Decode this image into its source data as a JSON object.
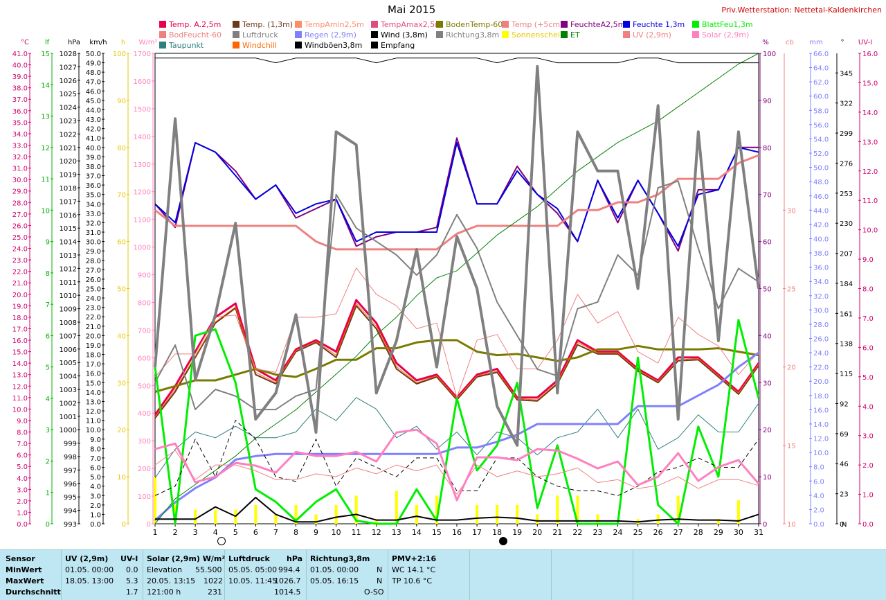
{
  "header": {
    "title": "Mai 2015",
    "station": "Priv.Wetterstation: Nettetal-Kaldenkirchen"
  },
  "legend": [
    {
      "label": "Temp. A.2,5m",
      "color": "#e6004d"
    },
    {
      "label": "Temp. (1,3m)",
      "color": "#6b3a1a"
    },
    {
      "label": "TempAmin2,5m",
      "color": "#ff8c69"
    },
    {
      "label": "TempAmax2,5m",
      "color": "#e04b7a"
    },
    {
      "label": "BodenTemp-60",
      "color": "#7a7a00"
    },
    {
      "label": "Temp (+5cm)",
      "color": "#f08080"
    },
    {
      "label": "FeuchteA2,5m",
      "color": "#800080"
    },
    {
      "label": "Feuchte 1,3m",
      "color": "#0000e0"
    },
    {
      "label": "BlattFeu1,3m",
      "color": "#00ee00"
    },
    {
      "label": "BodFeucht-60",
      "color": "#f08080"
    },
    {
      "label": "Luftdruck",
      "color": "#808080"
    },
    {
      "label": "Regen (2,9m)",
      "color": "#8080ff"
    },
    {
      "label": "Wind (3,8m)",
      "color": "#000000"
    },
    {
      "label": "Richtung3,8m",
      "color": "#808080"
    },
    {
      "label": "Sonnenschein",
      "color": "#ffff00"
    },
    {
      "label": "ET",
      "color": "#008000"
    },
    {
      "label": "UV (2,9m)",
      "color": "#f08080"
    },
    {
      "label": "Solar (2,9m)",
      "color": "#ff80c0"
    },
    {
      "label": "Taupunkt",
      "color": "#2f7f7f"
    },
    {
      "label": "Windchill",
      "color": "#ff6600"
    },
    {
      "label": "Windböen3,8m",
      "color": "#000000"
    },
    {
      "label": "Empfang",
      "color": "#000000"
    }
  ],
  "axes_labels": {
    "temp_unit": "°C",
    "lf_unit": "lf",
    "hpa_unit": "hPa",
    "kmh_unit": "km/h",
    "h_unit": "h",
    "wm2_unit": "W/m²",
    "pct_unit": "%",
    "cb_unit": "cb",
    "mm_unit": "mm",
    "deg_unit": "°",
    "uvi_unit": "UV-I",
    "north": "N"
  },
  "chart_data": {
    "type": "line",
    "title": "Mai 2015",
    "x": [
      1,
      2,
      3,
      4,
      5,
      6,
      7,
      8,
      9,
      10,
      11,
      12,
      13,
      14,
      15,
      16,
      17,
      18,
      19,
      20,
      21,
      22,
      23,
      24,
      25,
      26,
      27,
      28,
      29,
      30,
      31
    ],
    "axes": {
      "temp_c": {
        "ylim": [
          0,
          41
        ]
      },
      "lf": {
        "ylim": [
          0,
          15
        ]
      },
      "hpa": {
        "ylim": [
          993,
          1028
        ]
      },
      "kmh": {
        "ylim": [
          0,
          50
        ]
      },
      "h": {
        "ylim": [
          0,
          100
        ]
      },
      "wm2": {
        "ylim": [
          0,
          1700
        ]
      },
      "pct": {
        "ylim": [
          0,
          100
        ]
      },
      "cb": {
        "ylim": [
          10,
          40
        ]
      },
      "mm": {
        "ylim": [
          0,
          66
        ]
      },
      "deg": {
        "ylim": [
          0,
          360
        ]
      },
      "uvi": {
        "ylim": [
          0,
          16
        ]
      }
    },
    "series": [
      {
        "name": "Temp. A.2,5m",
        "axis": "temp_c",
        "color": "#e6004d",
        "width": 3,
        "values": [
          9.5,
          12.0,
          15.0,
          18.0,
          19.2,
          13.5,
          12.5,
          15.2,
          16.0,
          15.0,
          19.5,
          17.5,
          14.0,
          12.5,
          13.0,
          11.0,
          13.0,
          13.5,
          11.0,
          11.0,
          12.5,
          16.0,
          15.0,
          15.0,
          13.5,
          12.5,
          14.5,
          14.5,
          13.0,
          11.5,
          14.0
        ]
      },
      {
        "name": "Temp. (1,3m)",
        "axis": "temp_c",
        "color": "#6b3a1a",
        "width": 2,
        "values": [
          9.2,
          11.5,
          14.5,
          17.5,
          18.8,
          13.0,
          12.2,
          15.0,
          15.8,
          14.5,
          19.0,
          17.0,
          13.5,
          12.2,
          12.8,
          10.8,
          12.8,
          13.2,
          10.8,
          10.7,
          12.2,
          15.6,
          14.8,
          14.8,
          13.3,
          12.3,
          14.2,
          14.3,
          12.8,
          11.3,
          13.8
        ]
      },
      {
        "name": "BodenTemp-60",
        "axis": "temp_c",
        "color": "#7a7a00",
        "width": 3,
        "values": [
          11.5,
          12.0,
          12.5,
          12.5,
          13.0,
          13.5,
          13.0,
          12.8,
          13.5,
          14.3,
          14.3,
          15.3,
          15.3,
          15.8,
          16.0,
          16.0,
          15.0,
          14.7,
          14.8,
          14.5,
          14.2,
          14.5,
          15.2,
          15.2,
          15.5,
          15.2,
          15.2,
          15.2,
          15.3,
          15.0,
          14.7
        ]
      },
      {
        "name": "Temp (+5cm)",
        "axis": "temp_c",
        "color": "#f08080",
        "width": 1,
        "values": [
          12.8,
          14.8,
          14.8,
          18.0,
          18.2,
          13.5,
          13.2,
          18.0,
          18.0,
          18.3,
          22.3,
          20.0,
          19.0,
          17.0,
          17.5,
          11.0,
          16.0,
          16.5,
          13.5,
          13.5,
          16.0,
          20.0,
          17.5,
          18.5,
          15.0,
          14.0,
          18.0,
          16.5,
          15.5,
          13.0,
          15.0
        ]
      },
      {
        "name": "Taupunkt",
        "axis": "temp_c",
        "color": "#2f7f7f",
        "width": 1,
        "values": [
          4.0,
          6.5,
          8.0,
          7.5,
          8.5,
          7.5,
          7.5,
          8.0,
          10.0,
          9.0,
          11.0,
          10.0,
          7.5,
          8.5,
          6.5,
          8.0,
          6.0,
          8.0,
          7.5,
          6.0,
          7.5,
          8.0,
          10.0,
          7.5,
          10.0,
          6.5,
          7.5,
          9.5,
          8.0,
          8.0,
          10.5
        ]
      },
      {
        "name": "Windchill",
        "axis": "temp_c",
        "color": "#ff6600",
        "width": 1,
        "values": [
          9.3,
          11.7,
          14.6,
          17.6,
          18.9,
          13.2,
          12.3,
          15.1,
          15.9,
          14.7,
          19.2,
          17.2,
          13.7,
          12.3,
          12.9,
          10.9,
          12.9,
          13.3,
          10.9,
          10.8,
          12.3,
          15.8,
          14.9,
          14.9,
          13.4,
          12.4,
          14.3,
          14.4,
          12.9,
          11.4,
          13.9
        ]
      },
      {
        "name": "FeuchteA2,5m",
        "axis": "pct",
        "color": "#800080",
        "width": 2,
        "values": [
          68,
          63,
          81,
          79,
          75,
          69,
          72,
          65,
          67,
          69,
          59,
          61,
          62,
          62,
          63,
          82,
          68,
          68,
          76,
          70,
          66,
          60,
          73,
          64,
          73,
          66,
          58,
          71,
          71,
          80,
          80
        ]
      },
      {
        "name": "Feuchte 1,3m",
        "axis": "pct",
        "color": "#0000e0",
        "width": 2,
        "values": [
          68,
          64,
          81,
          79,
          74,
          69,
          72,
          66,
          68,
          69,
          60,
          62,
          62,
          62,
          62,
          81,
          68,
          68,
          75,
          70,
          67,
          60,
          73,
          65,
          73,
          66,
          59,
          70,
          71,
          80,
          79
        ]
      },
      {
        "name": "BodFeucht-60",
        "axis": "cb",
        "color": "#f08080",
        "width": 3,
        "values": [
          30,
          29,
          29,
          29,
          29,
          29,
          29,
          29,
          28,
          27.5,
          27.5,
          27.5,
          27.5,
          27.5,
          27.5,
          28.5,
          29,
          29,
          29,
          29,
          29,
          30,
          30,
          30.5,
          30.5,
          31,
          32,
          32,
          32,
          33,
          33.5
        ]
      },
      {
        "name": "Luftdruck",
        "axis": "hpa",
        "color": "#808080",
        "width": 2,
        "values": [
          1003.5,
          1006.3,
          1001.5,
          1003.0,
          1002.5,
          1001.5,
          1001.5,
          1002.5,
          1003.0,
          1017.5,
          1015.0,
          1014.0,
          1013.0,
          1011.5,
          1013.0,
          1016.0,
          1013.5,
          1009.5,
          1007.0,
          1004.5,
          1004.0,
          1009.0,
          1009.5,
          1013.0,
          1011.5,
          1018.0,
          1018.5,
          1013.5,
          1009.0,
          1012.0,
          1011.0
        ]
      },
      {
        "name": "Regen (2,9m)",
        "axis": "mm",
        "color": "#8080ff",
        "width": 3,
        "values": [
          0.5,
          3.0,
          5.0,
          6.5,
          9.0,
          9.5,
          9.8,
          9.8,
          9.8,
          9.8,
          9.8,
          9.8,
          9.8,
          9.8,
          9.8,
          10.7,
          10.7,
          11.5,
          12.5,
          14.0,
          14.0,
          14.0,
          14.0,
          14.0,
          16.5,
          16.5,
          16.5,
          18.0,
          19.5,
          22.0,
          24.0
        ]
      },
      {
        "name": "ET",
        "axis": "mm",
        "color": "#008000",
        "width": 1,
        "values": [
          0,
          3.5,
          5.5,
          7.5,
          9.5,
          12.0,
          14.0,
          16.0,
          18.5,
          21.0,
          23.5,
          26.5,
          29.0,
          32.0,
          34.5,
          35.5,
          38.0,
          40.5,
          42.5,
          44.5,
          47.0,
          49.5,
          51.5,
          53.5,
          55.0,
          56.5,
          58.5,
          60.5,
          62.5,
          64.5,
          66.0
        ]
      },
      {
        "name": "BlattFeu1,3m",
        "axis": "lf",
        "color": "#00ee00",
        "width": 3,
        "values": [
          5.0,
          0.0,
          6.0,
          6.2,
          4.5,
          1.1,
          0.7,
          0.1,
          0.7,
          1.1,
          0.1,
          0.0,
          0.0,
          1.1,
          0.1,
          4.0,
          1.7,
          2.5,
          4.5,
          0.5,
          2.5,
          0.0,
          0.0,
          0.0,
          5.3,
          0.6,
          0.0,
          3.1,
          1.5,
          6.5,
          4.0
        ]
      },
      {
        "name": "Wind (3,8m)",
        "axis": "kmh",
        "color": "#000000",
        "width": 2,
        "values": [
          0.5,
          0.5,
          0.5,
          1.8,
          0.8,
          2.8,
          1.0,
          0.2,
          0.2,
          0.7,
          1.0,
          0.4,
          0.4,
          0.8,
          0.4,
          0.4,
          0.6,
          0.7,
          0.6,
          0.3,
          0.3,
          0.3,
          0.3,
          0.3,
          0.2,
          0.4,
          0.5,
          0.4,
          0.4,
          0.3,
          1.0
        ]
      },
      {
        "name": "Windböen3,8m",
        "axis": "kmh",
        "color": "#000000",
        "width": 1,
        "dash": true,
        "values": [
          3.0,
          4.0,
          9.0,
          5.0,
          11.0,
          9.0,
          5.0,
          4.5,
          9.0,
          4.0,
          7.0,
          6.0,
          5.0,
          7.0,
          7.0,
          3.5,
          3.5,
          7.0,
          7.0,
          5.0,
          4.0,
          3.5,
          3.5,
          3.0,
          4.0,
          5.5,
          6.0,
          7.0,
          6.0,
          6.0,
          9.0
        ]
      },
      {
        "name": "Richtung3,8m",
        "axis": "deg",
        "color": "#808080",
        "width": 4,
        "values": [
          120,
          310,
          110,
          160,
          230,
          80,
          100,
          160,
          70,
          300,
          290,
          100,
          140,
          210,
          120,
          220,
          180,
          90,
          60,
          350,
          100,
          300,
          270,
          270,
          180,
          320,
          80,
          300,
          140,
          300,
          180
        ]
      },
      {
        "name": "UV (2,9m)",
        "axis": "uvi",
        "color": "#f08080",
        "width": 1,
        "values": [
          2.0,
          2.5,
          1.5,
          2.0,
          2.0,
          1.8,
          1.5,
          1.5,
          1.7,
          1.6,
          1.9,
          1.7,
          2.0,
          1.8,
          2.0,
          1.0,
          2.0,
          1.6,
          1.8,
          1.6,
          1.7,
          1.9,
          1.4,
          1.5,
          1.2,
          1.3,
          1.6,
          1.2,
          1.5,
          1.5,
          1.3
        ]
      },
      {
        "name": "Solar (2,9m)",
        "axis": "wm2",
        "color": "#ff80c0",
        "width": 3,
        "values": [
          270,
          290,
          150,
          170,
          220,
          210,
          185,
          260,
          245,
          245,
          260,
          225,
          330,
          340,
          290,
          85,
          240,
          240,
          230,
          270,
          265,
          235,
          200,
          225,
          140,
          170,
          255,
          155,
          205,
          230,
          145
        ]
      },
      {
        "name": "Empfang",
        "axis": "pct",
        "color": "#000000",
        "width": 1,
        "values": [
          99,
          99,
          99,
          99,
          99,
          99,
          98,
          99,
          99,
          99,
          99,
          98,
          99,
          99,
          99,
          99,
          99,
          98,
          99,
          99,
          98,
          98,
          98,
          98,
          99,
          99,
          98,
          98,
          98,
          98,
          98
        ]
      }
    ],
    "sunshine_h": [
      10,
      4,
      3,
      3,
      3,
      4,
      2,
      4,
      2,
      4,
      6,
      1,
      7,
      4,
      6,
      0,
      4,
      4,
      4,
      2,
      6,
      6,
      2,
      0,
      1,
      2,
      6,
      0,
      1,
      5,
      0
    ],
    "moon_phases": [
      {
        "day": 4,
        "phase": "full"
      },
      {
        "day": 18,
        "phase": "new"
      }
    ]
  },
  "footer": {
    "sensor": {
      "title": "Sensor",
      "rows": [
        "MinWert",
        "MaxWert",
        "Durchschnitt"
      ]
    },
    "uv": {
      "title": "UV (2,9m)",
      "unit": "UV-I",
      "rows": [
        [
          "01.05.  00:00",
          "0.0"
        ],
        [
          "18.05.  13:00",
          "5.3"
        ],
        [
          "",
          "1.7"
        ]
      ]
    },
    "solar": {
      "title": "Solar (2,9m) W/m²",
      "rows": [
        [
          "Elevation",
          "55.500"
        ],
        [
          "20.05.  13:15",
          "1022"
        ],
        [
          "121:00 h",
          "231"
        ]
      ]
    },
    "luftdruck": {
      "title": "Luftdruck",
      "unit": "hPa",
      "rows": [
        [
          "05.05.  05:00",
          "994.4"
        ],
        [
          "10.05.  11:45",
          "1026.7"
        ],
        [
          "",
          "1014.5"
        ]
      ]
    },
    "richtung": {
      "title": "Richtung3,8m",
      "rows": [
        [
          "01.05.  00:00",
          "N"
        ],
        [
          "05.05.  16:15",
          "N"
        ],
        [
          "",
          "O-SO"
        ]
      ]
    },
    "pmv": {
      "title": "PMV+2:16",
      "rows": [
        "WC 14.1 °C",
        "TP 10.6 °C"
      ]
    }
  }
}
